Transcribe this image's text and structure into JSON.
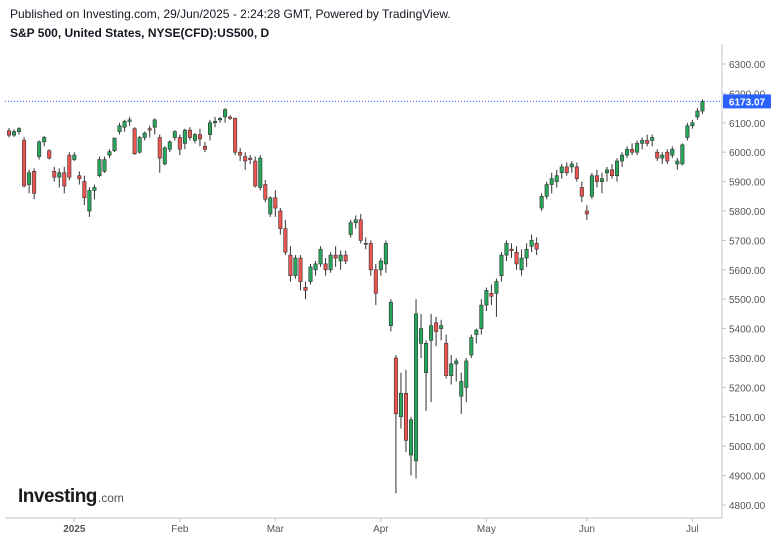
{
  "header": {
    "publish_line": "Published on Investing.com, 29/Jun/2025 - 2:24:28 GMT, Powered by TradingView.",
    "symbol_line": "S&P 500, United States, NYSE(CFD):US500, D"
  },
  "logo": {
    "main": "Investing",
    "sub": ".com"
  },
  "colors": {
    "up": "#26a65b",
    "down": "#ef5350",
    "wick": "#333333",
    "price_line": "#2962ff",
    "label_bg": "#2962ff",
    "axis_line": "#c0c3cc",
    "tick_text": "#555555"
  },
  "chart_data": {
    "type": "candlestick",
    "title": "S&P 500, United States, NYSE(CFD):US500, D",
    "ylim": [
      4770,
      6360
    ],
    "y_ticks": [
      4800,
      4900,
      5000,
      5100,
      5200,
      5300,
      5400,
      5500,
      5600,
      5700,
      5800,
      5900,
      6000,
      6100,
      6200,
      6300
    ],
    "y_tick_labels": [
      "4800.00",
      "4900.00",
      "5000.00",
      "5100.00",
      "5200.00",
      "5300.00",
      "5400.00",
      "5500.00",
      "5600.00",
      "5700.00",
      "5800.00",
      "5900.00",
      "6000.00",
      "6100.00",
      "6200.00",
      "6300.00"
    ],
    "x_labels": [
      {
        "label": "2025",
        "index": 13,
        "bold": true
      },
      {
        "label": "Feb",
        "index": 34,
        "bold": false
      },
      {
        "label": "Mar",
        "index": 53,
        "bold": false
      },
      {
        "label": "Apr",
        "index": 74,
        "bold": false
      },
      {
        "label": "May",
        "index": 95,
        "bold": false
      },
      {
        "label": "Jun",
        "index": 115,
        "bold": false
      },
      {
        "label": "Jul",
        "index": 136,
        "bold": false
      }
    ],
    "last_price": 6173.07,
    "last_price_label": "6173.07",
    "candles": [
      [
        6073,
        6082,
        6050,
        6058
      ],
      [
        6058,
        6078,
        6052,
        6070
      ],
      [
        6070,
        6085,
        6060,
        6080
      ],
      [
        6040,
        6052,
        5880,
        5885
      ],
      [
        5890,
        5940,
        5860,
        5930
      ],
      [
        5935,
        5945,
        5840,
        5860
      ],
      [
        5985,
        6040,
        5975,
        6035
      ],
      [
        6035,
        6055,
        6020,
        6050
      ],
      [
        6005,
        6010,
        5975,
        5980
      ],
      [
        5935,
        5950,
        5900,
        5915
      ],
      [
        5915,
        5945,
        5880,
        5930
      ],
      [
        5930,
        5950,
        5860,
        5885
      ],
      [
        5990,
        6000,
        5905,
        5915
      ],
      [
        5975,
        6000,
        5970,
        5990
      ],
      [
        5920,
        5935,
        5890,
        5910
      ],
      [
        5900,
        5920,
        5820,
        5845
      ],
      [
        5800,
        5880,
        5780,
        5870
      ],
      [
        5870,
        5890,
        5840,
        5880
      ],
      [
        5920,
        5985,
        5915,
        5975
      ],
      [
        5935,
        5985,
        5930,
        5975
      ],
      [
        5990,
        6010,
        5980,
        6002
      ],
      [
        6005,
        6050,
        6000,
        6048
      ],
      [
        6070,
        6100,
        6060,
        6090
      ],
      [
        6085,
        6110,
        6070,
        6105
      ],
      [
        6105,
        6120,
        6090,
        6110
      ],
      [
        6080,
        6085,
        5990,
        5995
      ],
      [
        6000,
        6055,
        5995,
        6050
      ],
      [
        6050,
        6070,
        6040,
        6065
      ],
      [
        6080,
        6090,
        6050,
        6075
      ],
      [
        6085,
        6115,
        6060,
        6110
      ],
      [
        6050,
        6060,
        5930,
        5980
      ],
      [
        5960,
        6020,
        5955,
        6015
      ],
      [
        6010,
        6040,
        6000,
        6035
      ],
      [
        6050,
        6075,
        6040,
        6070
      ],
      [
        6050,
        6060,
        5990,
        6010
      ],
      [
        6030,
        6080,
        6010,
        6075
      ],
      [
        6075,
        6085,
        6040,
        6050
      ],
      [
        6040,
        6065,
        6030,
        6060
      ],
      [
        6060,
        6080,
        6020,
        6045
      ],
      [
        6020,
        6035,
        6000,
        6010
      ],
      [
        6060,
        6110,
        6040,
        6100
      ],
      [
        6100,
        6120,
        6085,
        6105
      ],
      [
        6110,
        6120,
        6100,
        6115
      ],
      [
        6120,
        6150,
        6100,
        6145
      ],
      [
        6120,
        6125,
        6110,
        6115
      ],
      [
        6115,
        6118,
        5990,
        6000
      ],
      [
        6000,
        6015,
        5970,
        5990
      ],
      [
        5985,
        6000,
        5940,
        5970
      ],
      [
        5980,
        5990,
        5960,
        5975
      ],
      [
        5970,
        5985,
        5880,
        5885
      ],
      [
        5880,
        5990,
        5870,
        5980
      ],
      [
        5890,
        5905,
        5830,
        5840
      ],
      [
        5790,
        5850,
        5780,
        5845
      ],
      [
        5845,
        5870,
        5780,
        5810
      ],
      [
        5800,
        5810,
        5720,
        5740
      ],
      [
        5740,
        5770,
        5650,
        5660
      ],
      [
        5650,
        5680,
        5560,
        5580
      ],
      [
        5580,
        5650,
        5570,
        5640
      ],
      [
        5640,
        5650,
        5530,
        5560
      ],
      [
        5540,
        5560,
        5500,
        5530
      ],
      [
        5560,
        5620,
        5550,
        5610
      ],
      [
        5600,
        5630,
        5580,
        5620
      ],
      [
        5620,
        5680,
        5610,
        5670
      ],
      [
        5620,
        5640,
        5580,
        5600
      ],
      [
        5600,
        5660,
        5590,
        5650
      ],
      [
        5650,
        5680,
        5610,
        5640
      ],
      [
        5630,
        5665,
        5600,
        5650
      ],
      [
        5650,
        5665,
        5620,
        5630
      ],
      [
        5720,
        5770,
        5710,
        5760
      ],
      [
        5760,
        5785,
        5740,
        5770
      ],
      [
        5770,
        5790,
        5690,
        5700
      ],
      [
        5690,
        5710,
        5670,
        5690
      ],
      [
        5690,
        5700,
        5580,
        5600
      ],
      [
        5600,
        5620,
        5480,
        5520
      ],
      [
        5600,
        5640,
        5580,
        5630
      ],
      [
        5620,
        5700,
        5590,
        5690
      ],
      [
        5410,
        5500,
        5390,
        5490
      ],
      [
        5300,
        5310,
        4840,
        5110
      ],
      [
        5100,
        5250,
        5060,
        5180
      ],
      [
        5180,
        5260,
        4980,
        5020
      ],
      [
        4970,
        5100,
        4900,
        5090
      ],
      [
        4950,
        5500,
        4890,
        5450
      ],
      [
        5350,
        5450,
        5300,
        5400
      ],
      [
        5250,
        5360,
        5120,
        5350
      ],
      [
        5360,
        5450,
        5150,
        5410
      ],
      [
        5420,
        5440,
        5340,
        5390
      ],
      [
        5400,
        5430,
        5360,
        5410
      ],
      [
        5350,
        5380,
        5230,
        5240
      ],
      [
        5240,
        5310,
        5210,
        5280
      ],
      [
        5280,
        5300,
        5220,
        5290
      ],
      [
        5170,
        5250,
        5110,
        5220
      ],
      [
        5200,
        5300,
        5150,
        5290
      ],
      [
        5310,
        5380,
        5300,
        5370
      ],
      [
        5380,
        5400,
        5350,
        5395
      ],
      [
        5400,
        5500,
        5380,
        5480
      ],
      [
        5480,
        5540,
        5460,
        5530
      ],
      [
        5520,
        5550,
        5480,
        5510
      ],
      [
        5520,
        5570,
        5440,
        5560
      ],
      [
        5580,
        5660,
        5560,
        5650
      ],
      [
        5650,
        5700,
        5630,
        5690
      ],
      [
        5670,
        5690,
        5640,
        5665
      ],
      [
        5660,
        5680,
        5600,
        5620
      ],
      [
        5600,
        5670,
        5580,
        5640
      ],
      [
        5640,
        5690,
        5610,
        5670
      ],
      [
        5680,
        5720,
        5660,
        5700
      ],
      [
        5690,
        5710,
        5650,
        5670
      ],
      [
        5810,
        5860,
        5800,
        5850
      ],
      [
        5850,
        5900,
        5840,
        5890
      ],
      [
        5890,
        5930,
        5860,
        5910
      ],
      [
        5900,
        5940,
        5880,
        5920
      ],
      [
        5930,
        5960,
        5910,
        5950
      ],
      [
        5950,
        5965,
        5920,
        5930
      ],
      [
        5950,
        5970,
        5930,
        5960
      ],
      [
        5950,
        5965,
        5900,
        5910
      ],
      [
        5880,
        5900,
        5830,
        5850
      ],
      [
        5800,
        5820,
        5770,
        5790
      ],
      [
        5850,
        5930,
        5840,
        5920
      ],
      [
        5920,
        5940,
        5880,
        5900
      ],
      [
        5900,
        5930,
        5860,
        5910
      ],
      [
        5930,
        5950,
        5900,
        5940
      ],
      [
        5940,
        5960,
        5910,
        5920
      ],
      [
        5920,
        5980,
        5900,
        5970
      ],
      [
        5970,
        6000,
        5950,
        5990
      ],
      [
        5990,
        6020,
        5980,
        6010
      ],
      [
        6010,
        6030,
        5990,
        6000
      ],
      [
        6000,
        6040,
        5990,
        6030
      ],
      [
        6030,
        6050,
        6010,
        6040
      ],
      [
        6040,
        6060,
        6020,
        6030
      ],
      [
        6040,
        6060,
        6020,
        6050
      ],
      [
        6000,
        6010,
        5970,
        5980
      ],
      [
        5980,
        6000,
        5960,
        5990
      ],
      [
        6000,
        6010,
        5960,
        5970
      ],
      [
        5990,
        6020,
        5980,
        6010
      ],
      [
        5960,
        5980,
        5940,
        5970
      ],
      [
        5960,
        6030,
        5955,
        6025
      ],
      [
        6050,
        6100,
        6040,
        6090
      ],
      [
        6090,
        6110,
        6080,
        6100
      ],
      [
        6120,
        6150,
        6110,
        6140
      ],
      [
        6140,
        6180,
        6130,
        6173
      ]
    ]
  }
}
